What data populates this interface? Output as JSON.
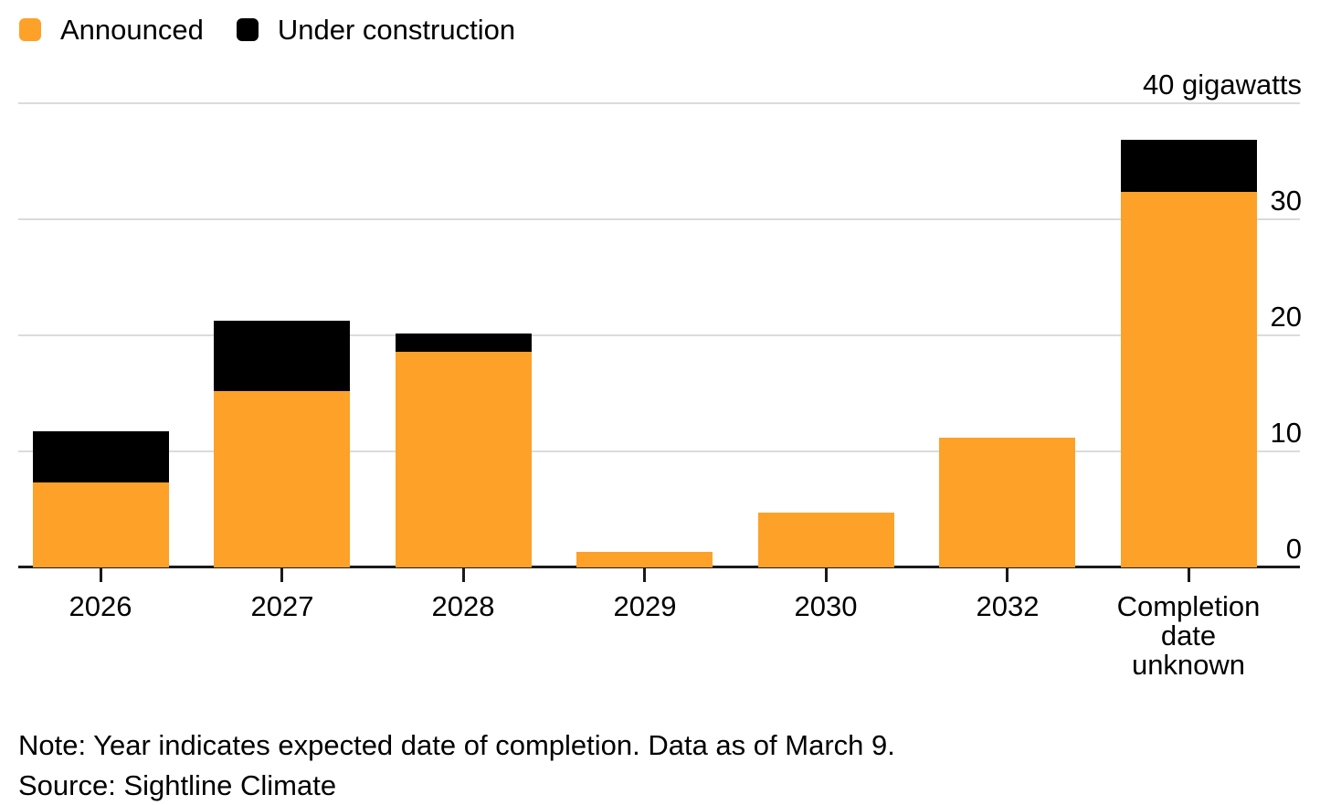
{
  "legend": {
    "items": [
      {
        "label": "Announced",
        "color": "#FDA129"
      },
      {
        "label": "Under construction",
        "color": "#000000"
      }
    ]
  },
  "chart_data": {
    "type": "bar",
    "stacked": true,
    "unit_label": "40 gigawatts",
    "categories": [
      "2026",
      "2027",
      "2028",
      "2029",
      "2030",
      "2032",
      "Completion\ndate\nunknown"
    ],
    "series": [
      {
        "name": "Announced",
        "color": "#FDA129",
        "values": [
          7.3,
          15.2,
          18.6,
          1.3,
          4.7,
          11.2,
          32.4
        ]
      },
      {
        "name": "Under construction",
        "color": "#000000",
        "values": [
          4.4,
          6.1,
          1.6,
          0,
          0,
          0,
          4.5
        ]
      }
    ],
    "ylabel": "gigawatts",
    "ylim": [
      0,
      40
    ],
    "yticks": [
      0,
      10,
      20,
      30,
      40
    ],
    "ytick_labels": [
      "0",
      "10",
      "20",
      "30",
      "40 gigawatts"
    ],
    "grid": "horizontal",
    "legend_position": "top-left"
  },
  "footer": {
    "note": "Note: Year indicates expected date of completion. Data as of March 9.",
    "source": "Source: Sightline Climate"
  },
  "colors": {
    "announced": "#FDA129",
    "under_construction": "#000000",
    "gridline": "#DBDBDB",
    "axis": "#1A1A1A",
    "text": "#000000",
    "background": "#FFFFFF"
  }
}
